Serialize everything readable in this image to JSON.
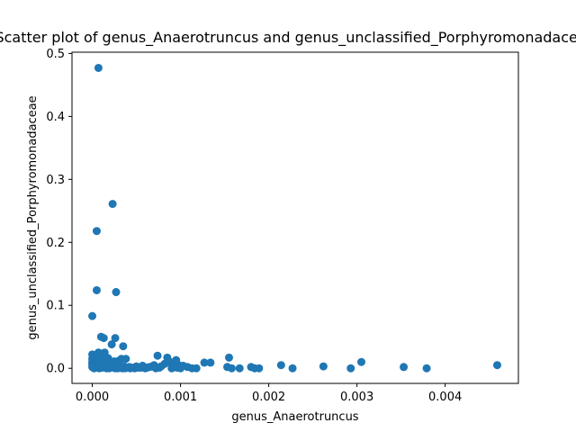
{
  "chart_data": {
    "type": "scatter",
    "title": "Scatter plot of genus_Anaerotruncus and genus_unclassified_Porphyromonadaceae",
    "xlabel": "genus_Anaerotruncus",
    "ylabel": "genus_unclassified_Porphyromonadaceae",
    "xlim": [
      -0.00023,
      0.00483
    ],
    "ylim": [
      -0.024,
      0.502
    ],
    "x_ticks": [
      {
        "value": 0.0,
        "label": "0.000"
      },
      {
        "value": 0.001,
        "label": "0.001"
      },
      {
        "value": 0.002,
        "label": "0.002"
      },
      {
        "value": 0.003,
        "label": "0.003"
      },
      {
        "value": 0.004,
        "label": "0.004"
      }
    ],
    "y_ticks": [
      {
        "value": 0.0,
        "label": "0.0"
      },
      {
        "value": 0.1,
        "label": "0.1"
      },
      {
        "value": 0.2,
        "label": "0.2"
      },
      {
        "value": 0.3,
        "label": "0.3"
      },
      {
        "value": 0.4,
        "label": "0.4"
      },
      {
        "value": 0.5,
        "label": "0.5"
      }
    ],
    "grid": false,
    "marker_color": "#1f77b4",
    "series": [
      {
        "points": [
          [
            7e-05,
            0.477
          ],
          [
            0.00023,
            0.261
          ],
          [
            5e-05,
            0.218
          ],
          [
            5e-05,
            0.124
          ],
          [
            0.00027,
            0.121
          ],
          [
            0.0,
            0.083
          ],
          [
            0.0001,
            0.05
          ],
          [
            0.00013,
            0.048
          ],
          [
            0.00026,
            0.048
          ],
          [
            0.00022,
            0.038
          ],
          [
            0.00035,
            0.035
          ],
          [
            7e-05,
            0.025
          ],
          [
            0.00014,
            0.025
          ],
          [
            0.0,
            0.022
          ],
          [
            5e-05,
            0.02
          ],
          [
            3e-05,
            0.018
          ],
          [
            0.0001,
            0.017
          ],
          [
            0.00018,
            0.016
          ],
          [
            0.0,
            0.015
          ],
          [
            0.00033,
            0.015
          ],
          [
            0.00038,
            0.015
          ],
          [
            8e-05,
            0.012
          ],
          [
            0.00015,
            0.012
          ],
          [
            0.00025,
            0.011
          ],
          [
            0.0003,
            0.012
          ],
          [
            0.0,
            0.01
          ],
          [
            5e-05,
            0.008
          ],
          [
            0.00012,
            0.008
          ],
          [
            0.0002,
            0.007
          ],
          [
            0.00028,
            0.008
          ],
          [
            0.0,
            0.006
          ],
          [
            4e-05,
            0.005
          ],
          [
            0.0001,
            0.004
          ],
          [
            0.00017,
            0.004
          ],
          [
            0.00022,
            0.003
          ],
          [
            0.0003,
            0.004
          ],
          [
            0.00036,
            0.003
          ],
          [
            0.00042,
            0.002
          ],
          [
            0.0,
            0.002
          ],
          [
            6e-05,
            0.001
          ],
          [
            0.00011,
            0.001
          ],
          [
            0.00016,
            0.0
          ],
          [
            0.00021,
            0.001
          ],
          [
            0.00026,
            0.0
          ],
          [
            0.00031,
            0.001
          ],
          [
            0.00037,
            0.0
          ],
          [
            0.00045,
            0.001
          ],
          [
            0.0005,
            0.003
          ],
          [
            0.00055,
            0.001
          ],
          [
            0.0006,
            0.0
          ],
          [
            0.00065,
            0.002
          ],
          [
            0.0007,
            0.005
          ],
          [
            0.00074,
            0.02
          ],
          [
            0.00078,
            0.003
          ],
          [
            0.00082,
            0.007
          ],
          [
            0.00085,
            0.017
          ],
          [
            0.00088,
            0.01
          ],
          [
            0.00092,
            0.003
          ],
          [
            0.00095,
            0.013
          ],
          [
            0.00098,
            0.005
          ],
          [
            0.00103,
            0.004
          ],
          [
            0.00108,
            0.002
          ],
          [
            0.00113,
            0.0
          ],
          [
            0.00118,
            0.0
          ],
          [
            0.00127,
            0.009
          ],
          [
            0.00134,
            0.009
          ],
          [
            0.00153,
            0.002
          ],
          [
            0.00155,
            0.017
          ],
          [
            0.00158,
            0.0
          ],
          [
            0.00167,
            0.0
          ],
          [
            0.0018,
            0.002
          ],
          [
            0.00184,
            0.0
          ],
          [
            0.00189,
            0.0
          ],
          [
            0.00214,
            0.005
          ],
          [
            0.00227,
            0.0
          ],
          [
            0.00262,
            0.003
          ],
          [
            0.00293,
            0.0
          ],
          [
            0.00305,
            0.01
          ],
          [
            0.00353,
            0.002
          ],
          [
            0.00379,
            0.0
          ],
          [
            0.00459,
            0.005
          ],
          [
            0.00057,
            0.004
          ],
          [
            0.00062,
            0.001
          ],
          [
            0.00068,
            0.003
          ],
          [
            0.00048,
            0.0
          ],
          [
            0.00052,
            0.001
          ],
          [
            2e-05,
            0.0
          ],
          [
            8e-05,
            0.0
          ],
          [
            0.00013,
            0.002
          ],
          [
            0.00019,
            0.0
          ],
          [
            0.00024,
            0.002
          ],
          [
            0.00029,
            0.0
          ],
          [
            0.00034,
            0.0
          ],
          [
            0.0004,
            0.001
          ],
          [
            0.00043,
            0.0
          ],
          [
            0.00072,
            0.0
          ],
          [
            0.00076,
            0.001
          ],
          [
            0.0009,
            0.0
          ],
          [
            0.00096,
            0.001
          ],
          [
            0.001,
            0.0
          ]
        ]
      }
    ]
  }
}
